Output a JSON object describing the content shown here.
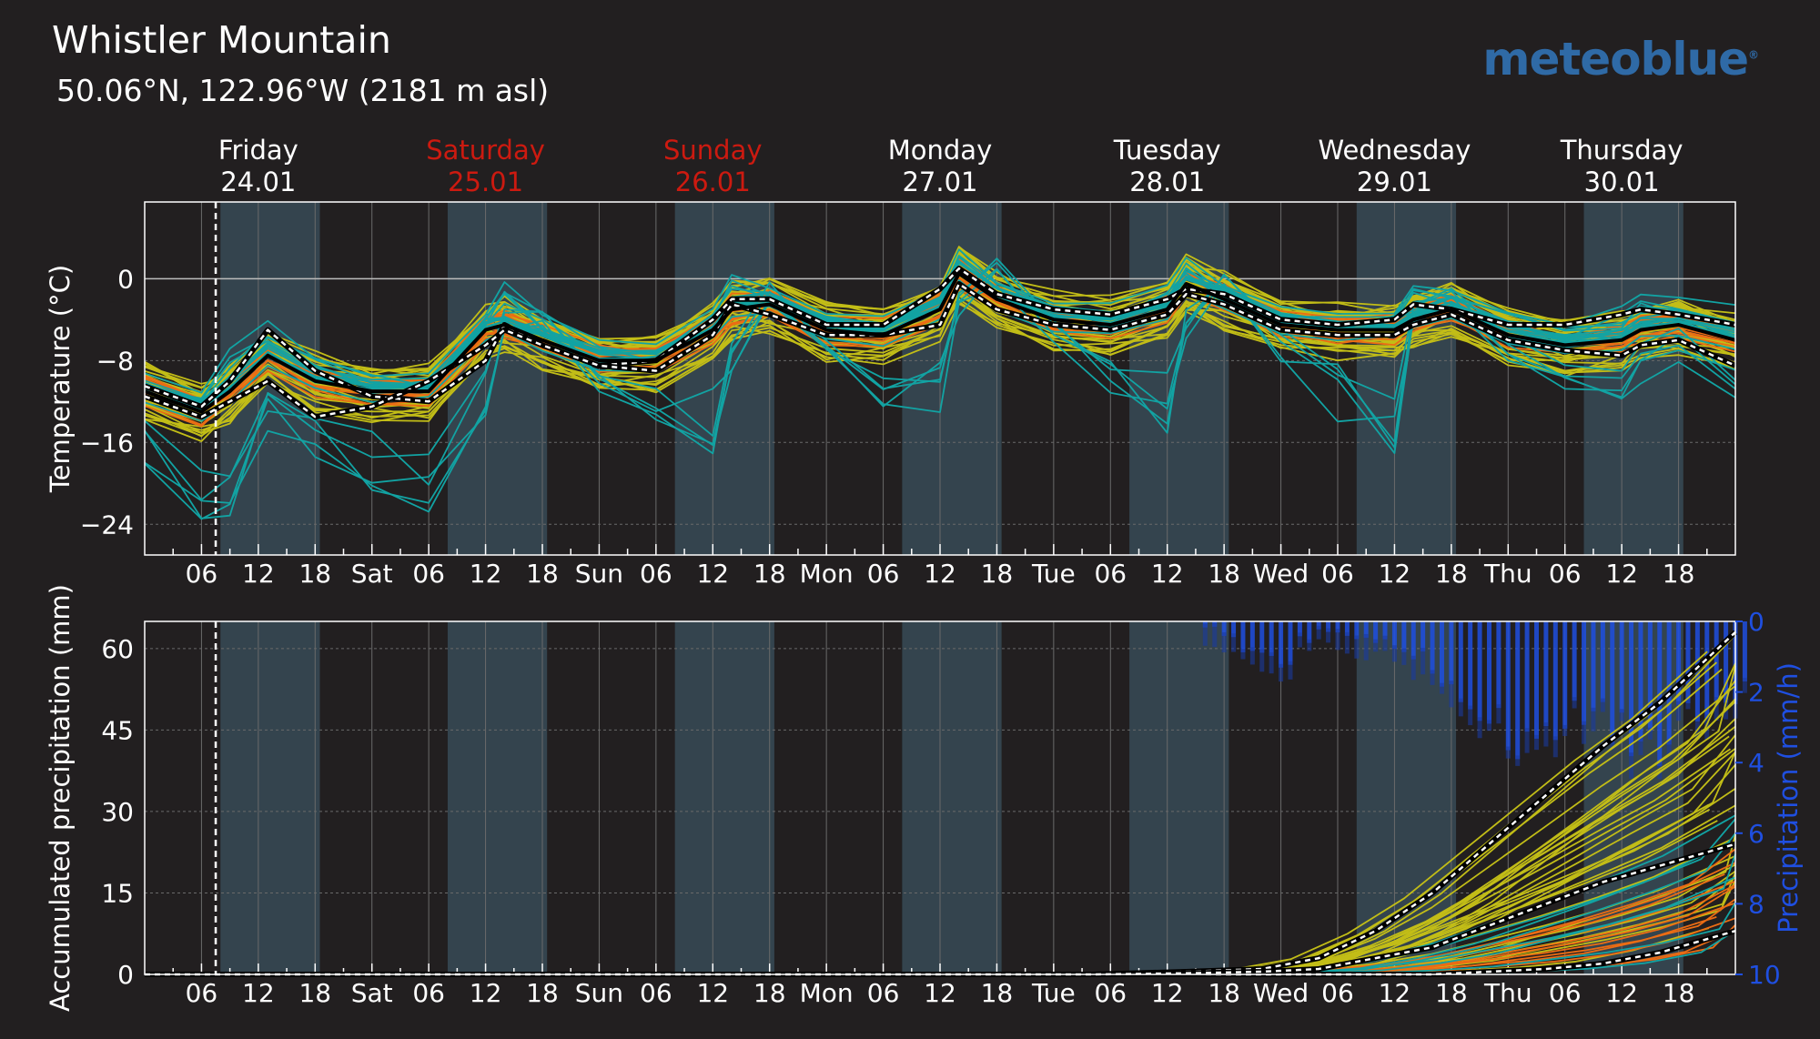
{
  "header": {
    "title": "Whistler Mountain",
    "subtitle": "50.06°N, 122.96°W (2181 m asl)",
    "brand": "meteoblue"
  },
  "colors": {
    "background": "#221f20",
    "daytime_band": "#34444e",
    "grid": "#6a6a6a",
    "weekend_text": "#cc1a10",
    "weekday_text": "#ffffff",
    "ensemble_teal": "#12a3a3",
    "ensemble_yellow": "#c2bd17",
    "ensemble_orange": "#eb6c14",
    "precip_bar": "#1f4fe0",
    "median_line": "#000000",
    "quantile_line": "#ffffff"
  },
  "chart_data": [
    {
      "type": "line",
      "title": "",
      "ylabel": "Temperature (°C)",
      "ylim": [
        -27,
        7.5
      ],
      "yticks": [
        0,
        -8,
        -16,
        -24
      ],
      "ytick_labels": [
        "0",
        "−8",
        "−16",
        "−24"
      ],
      "grid": true,
      "days": [
        {
          "name": "Friday",
          "date": "24.01",
          "weekend": false
        },
        {
          "name": "Saturday",
          "date": "25.01",
          "weekend": true
        },
        {
          "name": "Sunday",
          "date": "26.01",
          "weekend": true
        },
        {
          "name": "Monday",
          "date": "27.01",
          "weekend": false
        },
        {
          "name": "Tuesday",
          "date": "28.01",
          "weekend": false
        },
        {
          "name": "Wednesday",
          "date": "29.01",
          "weekend": false
        },
        {
          "name": "Thursday",
          "date": "30.01",
          "weekend": false
        }
      ],
      "xtick_labels": [
        "06",
        "12",
        "18",
        "Sat",
        "06",
        "12",
        "18",
        "Sun",
        "06",
        "12",
        "18",
        "Mon",
        "06",
        "12",
        "18",
        "Tue",
        "06",
        "12",
        "18",
        "Wed",
        "06",
        "12",
        "18",
        "Thu",
        "06",
        "12",
        "18"
      ],
      "now_hour": 7.5,
      "x_unit": "hours since Friday 24.01 00:00",
      "x": [
        0,
        6,
        9,
        13,
        18,
        24,
        30,
        36,
        38,
        42,
        48,
        54,
        60,
        62,
        66,
        72,
        78,
        84,
        86,
        90,
        96,
        102,
        108,
        110,
        114,
        120,
        126,
        132,
        134,
        138,
        144,
        150,
        156,
        158,
        162,
        168
      ],
      "series": [
        {
          "role": "median",
          "values": [
            -11,
            -13,
            -11,
            -7.5,
            -10,
            -11,
            -11,
            -5,
            -4.5,
            -6,
            -8,
            -8,
            -5,
            -3,
            -2.5,
            -5,
            -5.5,
            -3,
            0.5,
            -2,
            -4,
            -4.5,
            -3,
            -0.5,
            -2,
            -4.5,
            -5,
            -5,
            -4,
            -3,
            -5.5,
            -6.5,
            -6,
            -5,
            -4.5,
            -6
          ]
        },
        {
          "role": "upper quantile",
          "values": [
            -10.5,
            -12.5,
            -10,
            -5,
            -9,
            -11.5,
            -12,
            -8,
            -4.5,
            -6.5,
            -8.5,
            -8,
            -4,
            -2,
            -2,
            -4.5,
            -4.5,
            -1,
            1,
            -1.5,
            -3,
            -3.5,
            -2,
            -1,
            -1.5,
            -4,
            -4.5,
            -4,
            -2.5,
            -3,
            -4.5,
            -4.5,
            -3.5,
            -3,
            -3.5,
            -4.5
          ]
        },
        {
          "role": "lower quantile",
          "values": [
            -11.5,
            -13.5,
            -12,
            -10,
            -13.5,
            -12.5,
            -10,
            -6.5,
            -5,
            -6.5,
            -8.5,
            -9,
            -5.5,
            -2.5,
            -3.5,
            -5.5,
            -5.5,
            -4.5,
            -0.5,
            -3,
            -4.5,
            -5,
            -3.5,
            -1.5,
            -2.5,
            -5,
            -5.5,
            -5.5,
            -4.5,
            -3.5,
            -6,
            -7,
            -7.5,
            -6.5,
            -6,
            -8.5
          ]
        },
        {
          "role": "ensemble cold",
          "values": [
            -20,
            -25.5,
            -24,
            -15,
            -18,
            -22,
            -25,
            -14,
            -4,
            -2,
            -11,
            -15,
            -19,
            -10,
            -1,
            -8,
            -13,
            -16,
            -4,
            2,
            -6,
            -12,
            -17,
            -6,
            1,
            -8,
            -14,
            -18,
            -3,
            -1,
            -8,
            -11,
            -13,
            -10,
            -8,
            -12
          ]
        },
        {
          "role": "ensemble warm",
          "values": [
            -9,
            -11,
            -7,
            -4,
            -7,
            -9,
            -10,
            -3,
            0,
            -3,
            -6,
            -7,
            -3,
            1,
            -1,
            -3,
            -4,
            -1,
            3,
            0,
            -2,
            -3,
            -1,
            2,
            -1,
            -3,
            -4,
            -3,
            0,
            -1,
            -3,
            -3,
            -2,
            -1,
            -2,
            -3
          ]
        }
      ]
    },
    {
      "type": "area",
      "title": "",
      "ylabel": "Accumulated precipitation (mm)",
      "y2label": "Precipitation (mm/h)",
      "ylim": [
        0,
        65
      ],
      "yticks": [
        0,
        15,
        30,
        45,
        60
      ],
      "y2lim": [
        10,
        0
      ],
      "y2ticks": [
        0,
        2,
        4,
        6,
        8,
        10
      ],
      "grid": true,
      "xtick_labels": [
        "06",
        "12",
        "18",
        "Sat",
        "06",
        "12",
        "18",
        "Sun",
        "06",
        "12",
        "18",
        "Mon",
        "06",
        "12",
        "18",
        "Tue",
        "06",
        "12",
        "18",
        "Wed",
        "06",
        "12",
        "18",
        "Thu",
        "06",
        "12",
        "18"
      ],
      "x": [
        0,
        100,
        110,
        118,
        124,
        130,
        136,
        142,
        148,
        154,
        160,
        168
      ],
      "accumulated": [
        {
          "role": "median",
          "values": [
            0,
            0,
            0.2,
            0.5,
            1,
            3,
            5,
            9,
            13,
            17,
            20,
            24
          ]
        },
        {
          "role": "upper",
          "values": [
            0,
            0,
            0.5,
            1,
            3,
            8,
            15,
            24,
            33,
            42,
            50,
            63
          ]
        },
        {
          "role": "lower",
          "values": [
            0,
            0,
            0,
            0,
            0,
            0,
            0,
            0.5,
            1,
            2,
            4,
            8
          ]
        }
      ],
      "rate_x": [
        112,
        114,
        116,
        118,
        120,
        122,
        124,
        126,
        128,
        130,
        132,
        134,
        136,
        138,
        140,
        142,
        144,
        146,
        148,
        150,
        152,
        154,
        156,
        158,
        160,
        162,
        164,
        166,
        168
      ],
      "rate_mmh": [
        0.2,
        0.5,
        0.8,
        1,
        1.2,
        0.6,
        0.3,
        0.4,
        0.5,
        0.6,
        0.8,
        1.2,
        1.6,
        2.2,
        2.8,
        3.2,
        3.4,
        3.2,
        2.8,
        2.6,
        2.8,
        3,
        3.2,
        3.4,
        3.6,
        3.2,
        3,
        2.8,
        2.4
      ]
    }
  ]
}
